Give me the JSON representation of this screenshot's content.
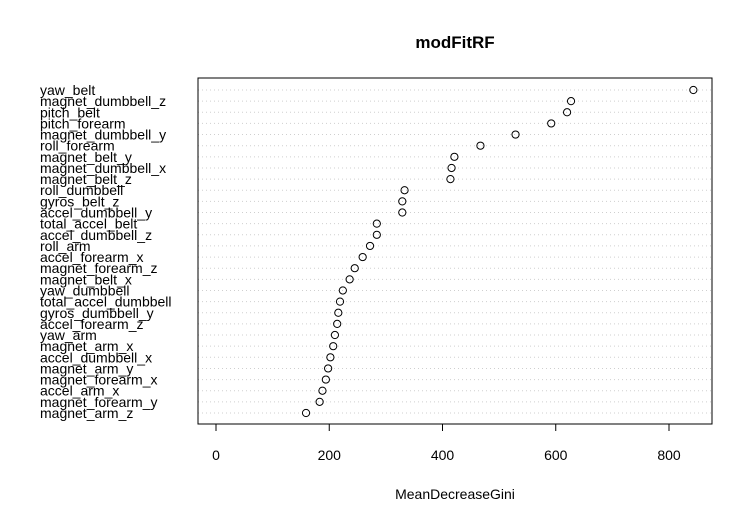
{
  "chart_data": {
    "type": "scatter",
    "subtype": "dotchart",
    "title": "modFitRF",
    "xlabel": "MeanDecreaseGini",
    "ylabel": "",
    "xlim": [
      0,
      860
    ],
    "xticks": [
      0,
      200,
      400,
      600,
      800
    ],
    "grid": true,
    "categories": [
      "yaw_belt",
      "magnet_dumbbell_z",
      "pitch_belt",
      "pitch_forearm",
      "magnet_dumbbell_y",
      "roll_forearm",
      "magnet_belt_y",
      "magnet_dumbbell_x",
      "magnet_belt_z",
      "roll_dumbbell",
      "gyros_belt_z",
      "accel_dumbbell_y",
      "total_accel_belt",
      "accel_dumbbell_z",
      "roll_arm",
      "accel_forearm_x",
      "magnet_forearm_z",
      "magnet_belt_x",
      "yaw_dumbbell",
      "total_accel_dumbbell",
      "gyros_dumbbell_y",
      "accel_forearm_z",
      "yaw_arm",
      "magnet_arm_x",
      "accel_dumbbell_x",
      "magnet_arm_y",
      "magnet_forearm_x",
      "accel_arm_x",
      "magnet_forearm_y",
      "magnet_arm_z"
    ],
    "values": [
      843,
      627,
      620,
      592,
      529,
      467,
      421,
      416,
      414,
      333,
      329,
      329,
      284,
      284,
      272,
      259,
      245,
      236,
      224,
      219,
      216,
      214,
      210,
      207,
      202,
      198,
      194,
      188,
      183,
      159
    ]
  }
}
